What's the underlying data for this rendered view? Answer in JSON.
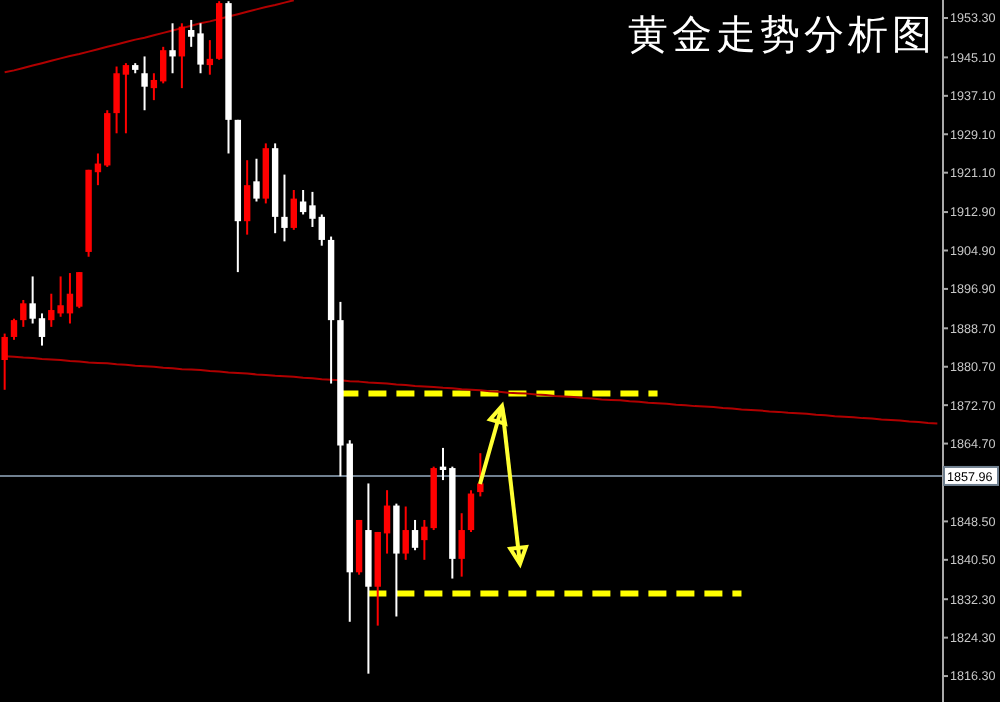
{
  "chart_data": {
    "type": "candlestick",
    "title": "黄金走势分析图",
    "categories": [
      null,
      null,
      null,
      null,
      null,
      null,
      null,
      null,
      null,
      null,
      null,
      null,
      null,
      null,
      null,
      null,
      null,
      null,
      null,
      null,
      null,
      null,
      null,
      null,
      null,
      null,
      null,
      null,
      null,
      null,
      null,
      null,
      null,
      null,
      null,
      null,
      null,
      null,
      null,
      null,
      null,
      null,
      null,
      null,
      null,
      null,
      null,
      null,
      null,
      null,
      null,
      null,
      null,
      null,
      null,
      null,
      null,
      null,
      null,
      null,
      null,
      null,
      null,
      null,
      null,
      null,
      null,
      null,
      null,
      null,
      null,
      null,
      null,
      null,
      null,
      null,
      null,
      null,
      null,
      null,
      null,
      null,
      null,
      null,
      null,
      null,
      null,
      null,
      null,
      null,
      null,
      null,
      null,
      null,
      null,
      null,
      null,
      null,
      null,
      null,
      null
    ],
    "ohlc": [
      [
        1882.1,
        1887.6,
        1875.9,
        1886.9
      ],
      [
        1886.9,
        1890.7,
        1886.3,
        1890.4
      ],
      [
        1890.4,
        1894.6,
        1889.0,
        1893.9
      ],
      [
        1893.9,
        1899.5,
        1889.7,
        1890.7
      ],
      [
        1890.8,
        1891.8,
        1885.1,
        1886.9
      ],
      [
        1890.4,
        1895.9,
        1889.0,
        1892.5
      ],
      [
        1891.8,
        1899.5,
        1891.1,
        1893.5
      ],
      [
        1891.8,
        1900.2,
        1889.7,
        1895.9
      ],
      [
        1893.2,
        1900.4,
        1892.9,
        1900.4
      ],
      [
        1904.6,
        1921.7,
        1903.6,
        1921.7
      ],
      [
        1921.2,
        1925.1,
        1918.5,
        1923.0
      ],
      [
        1922.6,
        1934.1,
        1922.3,
        1933.5
      ],
      [
        1933.5,
        1943.2,
        1929.3,
        1941.8
      ],
      [
        1941.5,
        1943.9,
        1929.3,
        1943.5
      ],
      [
        1943.5,
        1943.9,
        1941.8,
        1942.5
      ],
      [
        1941.8,
        1945.3,
        1934.1,
        1939.0
      ],
      [
        1938.7,
        1941.8,
        1936.2,
        1940.4
      ],
      [
        1940.1,
        1947.3,
        1939.7,
        1946.6
      ],
      [
        1946.6,
        1952.2,
        1941.8,
        1945.3
      ],
      [
        1945.3,
        1952.2,
        1938.7,
        1951.5
      ],
      [
        1950.8,
        1952.9,
        1947.3,
        1949.4
      ],
      [
        1950.1,
        1952.2,
        1941.8,
        1943.6
      ],
      [
        1943.5,
        1948.7,
        1941.5,
        1944.8
      ],
      [
        1944.8,
        1956.8,
        1944.6,
        1956.4
      ],
      [
        1956.4,
        1956.8,
        1925.1,
        1932.1
      ],
      [
        1932.1,
        1932.1,
        1900.4,
        1911.0
      ],
      [
        1911.0,
        1923.7,
        1908.2,
        1918.5
      ],
      [
        1919.3,
        1924.0,
        1915.1,
        1915.7
      ],
      [
        1915.7,
        1927.2,
        1914.7,
        1926.2
      ],
      [
        1926.2,
        1927.2,
        1908.5,
        1911.9
      ],
      [
        1911.9,
        1920.7,
        1906.8,
        1909.6
      ],
      [
        1909.6,
        1917.5,
        1909.2,
        1915.7
      ],
      [
        1915.1,
        1917.5,
        1912.4,
        1912.9
      ],
      [
        1914.3,
        1917.1,
        1909.8,
        1911.5
      ],
      [
        1911.9,
        1912.4,
        1905.9,
        1907.1
      ],
      [
        1907.1,
        1907.8,
        1877.2,
        1890.4
      ],
      [
        1890.4,
        1894.2,
        1857.9,
        1864.3
      ],
      [
        1864.7,
        1865.4,
        1827.6,
        1837.9
      ],
      [
        1837.9,
        1848.8,
        1837.4,
        1848.8
      ],
      [
        1846.7,
        1856.4,
        1816.8,
        1834.9
      ],
      [
        1834.9,
        1846.3,
        1826.8,
        1846.3
      ],
      [
        1846.0,
        1855.0,
        1841.8,
        1851.8
      ],
      [
        1851.8,
        1852.2,
        1828.7,
        1841.8
      ],
      [
        1841.8,
        1851.6,
        1840.5,
        1846.7
      ],
      [
        1846.7,
        1848.8,
        1842.5,
        1843.0
      ],
      [
        1844.6,
        1848.8,
        1840.5,
        1847.4
      ],
      [
        1847.1,
        1859.9,
        1846.7,
        1859.6
      ],
      [
        1859.9,
        1863.8,
        1857.1,
        1859.2
      ],
      [
        1859.6,
        1859.9,
        1836.6,
        1840.7
      ],
      [
        1840.7,
        1850.2,
        1837.0,
        1846.7
      ],
      [
        1846.7,
        1855.0,
        1846.3,
        1854.3
      ],
      [
        1854.6,
        1862.7,
        1853.7,
        1856.4
      ],
      null,
      null,
      null,
      null,
      null,
      null,
      null,
      null,
      null,
      null,
      null,
      null,
      null,
      null,
      null,
      null,
      null,
      null,
      null,
      null,
      null,
      null,
      null,
      null,
      null,
      null,
      null,
      null,
      null,
      null,
      null,
      null,
      null,
      null,
      null,
      null,
      null,
      null,
      null,
      null,
      null,
      null,
      null,
      null,
      null,
      null,
      null,
      null,
      null
    ],
    "colors": [
      "#ff0000",
      "#ff0000",
      "#ff0000",
      "#ffffff",
      "#ffffff",
      "#ff0000",
      "#ff0000",
      "#ff0000",
      "#ff0000",
      "#ff0000",
      "#ff0000",
      "#ff0000",
      "#ff0000",
      "#ff0000",
      "#ffffff",
      "#ffffff",
      "#ff0000",
      "#ff0000",
      "#ffffff",
      "#ff0000",
      "#ffffff",
      "#ffffff",
      "#ff0000",
      "#ff0000",
      "#ffffff",
      "#ffffff",
      "#ff0000",
      "#ffffff",
      "#ff0000",
      "#ffffff",
      "#ffffff",
      "#ff0000",
      "#ffffff",
      "#ffffff",
      "#ffffff",
      "#ffffff",
      "#ffffff",
      "#ffffff",
      "#ff0000",
      "#ffffff",
      "#ff0000",
      "#ff0000",
      "#ffffff",
      "#ff0000",
      "#ffffff",
      "#ff0000",
      "#ff0000",
      "#ffffff",
      "#ffffff",
      "#ff0000",
      "#ff0000",
      "#ff0000",
      null,
      null,
      null,
      null,
      null,
      null,
      null,
      null,
      null,
      null,
      null,
      null,
      null,
      null,
      null,
      null,
      null,
      null,
      null,
      null,
      null,
      null,
      null,
      null,
      null,
      null,
      null,
      null,
      null,
      null,
      null,
      null,
      null,
      null,
      null,
      null,
      null,
      null,
      null,
      null,
      null,
      null,
      null,
      null,
      null,
      null,
      null,
      null,
      null
    ],
    "series": [
      {
        "type": "line",
        "color": "#b00000",
        "line_style": "solid",
        "values": [
          1942.0,
          1942.4,
          1942.9,
          1943.4,
          1943.9,
          1944.4,
          1944.9,
          1945.4,
          1945.8,
          1946.3,
          1946.8,
          1947.3,
          1947.8,
          1948.3,
          1948.8,
          1949.2,
          1949.7,
          1950.2,
          1950.7,
          1951.2,
          1951.7,
          1952.2,
          1952.6,
          1953.1,
          1953.6,
          1954.1,
          1954.6,
          1955.1,
          1955.6,
          1956.0,
          1956.5,
          1957.0,
          null,
          null,
          null,
          null,
          null,
          null,
          null,
          null,
          null,
          null,
          null,
          null,
          null,
          null,
          null,
          null,
          null,
          null,
          null,
          null,
          null,
          null,
          null,
          null,
          null,
          null,
          null,
          null,
          null,
          null,
          null,
          null,
          null,
          null,
          null,
          null,
          null,
          null,
          null,
          null,
          null,
          null,
          null,
          null,
          null,
          null,
          null,
          null,
          null,
          null,
          null,
          null,
          null,
          null,
          null,
          null,
          null,
          null,
          null,
          null,
          null,
          null,
          null,
          null,
          null,
          null,
          null,
          null,
          null
        ]
      },
      {
        "type": "line",
        "color": "#b00000",
        "line_style": "solid",
        "values": [
          1882.9,
          1882.8,
          1882.6,
          1882.5,
          1882.3,
          1882.2,
          1882.1,
          1881.9,
          1881.8,
          1881.6,
          1881.5,
          1881.4,
          1881.2,
          1881.1,
          1880.9,
          1880.8,
          1880.7,
          1880.5,
          1880.4,
          1880.2,
          1880.1,
          1880.0,
          1879.8,
          1879.7,
          1879.5,
          1879.4,
          1879.3,
          1879.1,
          1879.0,
          1878.8,
          1878.7,
          1878.6,
          1878.4,
          1878.3,
          1878.1,
          1878.0,
          1877.9,
          1877.7,
          1877.6,
          1877.4,
          1877.3,
          1877.2,
          1877.0,
          1876.9,
          1876.7,
          1876.6,
          1876.5,
          1876.3,
          1876.2,
          1876.0,
          1875.9,
          1875.8,
          1875.6,
          1875.5,
          1875.3,
          1875.2,
          1875.1,
          1874.9,
          1874.8,
          1874.6,
          1874.5,
          1874.4,
          1874.2,
          1874.1,
          1873.9,
          1873.8,
          1873.7,
          1873.5,
          1873.4,
          1873.2,
          1873.1,
          1873.0,
          1872.8,
          1872.7,
          1872.5,
          1872.4,
          1872.3,
          1872.1,
          1872.0,
          1871.8,
          1871.7,
          1871.6,
          1871.4,
          1871.3,
          1871.1,
          1871.0,
          1870.9,
          1870.7,
          1870.6,
          1870.4,
          1870.3,
          1870.2,
          1870.0,
          1869.9,
          1869.7,
          1869.6,
          1869.5,
          1869.3,
          1869.2,
          1869.0,
          1868.9
        ]
      },
      {
        "type": "line",
        "color": "#ffff00",
        "line_style": "dashed",
        "values": [
          null,
          null,
          null,
          null,
          null,
          null,
          null,
          null,
          null,
          null,
          null,
          null,
          null,
          null,
          null,
          null,
          null,
          null,
          null,
          null,
          null,
          null,
          null,
          null,
          null,
          null,
          null,
          null,
          null,
          null,
          null,
          null,
          null,
          null,
          null,
          null,
          1875.1,
          1875.1,
          1875.1,
          1875.1,
          1875.1,
          1875.1,
          1875.1,
          1875.1,
          1875.1,
          1875.1,
          1875.1,
          1875.1,
          1875.1,
          1875.1,
          1875.1,
          1875.1,
          1875.1,
          1875.1,
          1875.1,
          1875.1,
          1875.1,
          1875.1,
          1875.1,
          1875.1,
          1875.1,
          1875.1,
          1875.1,
          1875.1,
          1875.1,
          1875.1,
          1875.1,
          1875.1,
          1875.1,
          1875.1,
          1875.1,
          null,
          null,
          null,
          null,
          null,
          null,
          null,
          null,
          null,
          null,
          null,
          null,
          null,
          null,
          null,
          null,
          null,
          null,
          null,
          null,
          null,
          null,
          null,
          null,
          null,
          null,
          null,
          null,
          null,
          null
        ]
      },
      {
        "type": "line",
        "color": "#ffff00",
        "line_style": "dashed",
        "values": [
          null,
          null,
          null,
          null,
          null,
          null,
          null,
          null,
          null,
          null,
          null,
          null,
          null,
          null,
          null,
          null,
          null,
          null,
          null,
          null,
          null,
          null,
          null,
          null,
          null,
          null,
          null,
          null,
          null,
          null,
          null,
          null,
          null,
          null,
          null,
          null,
          null,
          null,
          null,
          1833.5,
          1833.5,
          1833.5,
          1833.5,
          1833.5,
          1833.5,
          1833.5,
          1833.5,
          1833.5,
          1833.5,
          1833.5,
          1833.5,
          1833.5,
          1833.5,
          1833.5,
          1833.5,
          1833.5,
          1833.5,
          1833.5,
          1833.5,
          1833.5,
          1833.5,
          1833.5,
          1833.5,
          1833.5,
          1833.5,
          1833.5,
          1833.5,
          1833.5,
          1833.5,
          1833.5,
          1833.5,
          1833.5,
          1833.5,
          1833.5,
          1833.5,
          1833.5,
          1833.5,
          1833.5,
          1833.5,
          1833.5,
          null,
          null,
          null,
          null,
          null,
          null,
          null,
          null,
          null,
          null,
          null,
          null,
          null,
          null,
          null,
          null,
          null,
          null,
          null,
          null,
          null
        ]
      }
    ],
    "ylim": [
      1810.9,
      1957.05
    ],
    "yticks": [
      {
        "value": 1953.3,
        "label": "1953.30"
      },
      {
        "value": 1945.1,
        "label": "1945.10"
      },
      {
        "value": 1937.1,
        "label": "1937.10"
      },
      {
        "value": 1929.1,
        "label": "1929.10"
      },
      {
        "value": 1921.1,
        "label": "1921.10"
      },
      {
        "value": 1912.9,
        "label": "1912.90"
      },
      {
        "value": 1904.9,
        "label": "1904.90"
      },
      {
        "value": 1896.9,
        "label": "1896.90"
      },
      {
        "value": 1888.7,
        "label": "1888.70"
      },
      {
        "value": 1880.7,
        "label": "1880.70"
      },
      {
        "value": 1872.7,
        "label": "1872.70"
      },
      {
        "value": 1864.7,
        "label": "1864.70"
      },
      {
        "value": 1848.5,
        "label": "1848.50"
      },
      {
        "value": 1840.5,
        "label": "1840.50"
      },
      {
        "value": 1832.3,
        "label": "1832.30"
      },
      {
        "value": 1824.3,
        "label": "1824.30"
      },
      {
        "value": 1816.3,
        "label": "1816.30"
      }
    ],
    "ref_lines": [
      {
        "axis": "y",
        "value": 1857.96,
        "label": "1857.96",
        "color": "#708090"
      }
    ],
    "tick_labels": "y"
  }
}
